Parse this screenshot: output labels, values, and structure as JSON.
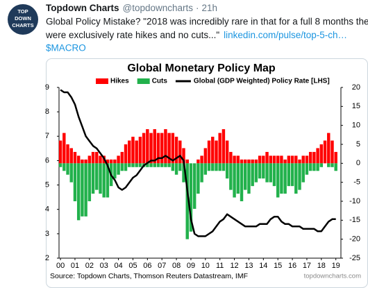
{
  "tweet": {
    "avatar_text": [
      "TOP",
      "DOWN",
      "CHARTS"
    ],
    "name": "Topdown Charts",
    "handle": "@topdowncharts",
    "time": "21h",
    "text_lines": [
      "Global Policy Mistake?  \"2018 was incredibly rare in that for a full 8 months there",
      "were exclusively rate hikes and no cuts...\""
    ],
    "link": "linkedin.com/pulse/top-5-ch…",
    "hashtag": "$MACRO"
  },
  "chart_data": {
    "type": "bar-line",
    "title": "Global Monetary Policy Map",
    "source": "Source: Topdown Charts, Thomson Reuters Datastream, IMF",
    "watermark": "topdowncharts.com",
    "x": [
      2000,
      2000.25,
      2000.5,
      2000.75,
      2001,
      2001.25,
      2001.5,
      2001.75,
      2002,
      2002.25,
      2002.5,
      2002.75,
      2003,
      2003.25,
      2003.5,
      2003.75,
      2004,
      2004.25,
      2004.5,
      2004.75,
      2005,
      2005.25,
      2005.5,
      2005.75,
      2006,
      2006.25,
      2006.5,
      2006.75,
      2007,
      2007.25,
      2007.5,
      2007.75,
      2008,
      2008.25,
      2008.5,
      2008.75,
      2009,
      2009.25,
      2009.5,
      2009.75,
      2010,
      2010.25,
      2010.5,
      2010.75,
      2011,
      2011.25,
      2011.5,
      2011.75,
      2012,
      2012.25,
      2012.5,
      2012.75,
      2013,
      2013.25,
      2013.5,
      2013.75,
      2014,
      2014.25,
      2014.5,
      2014.75,
      2015,
      2015.25,
      2015.5,
      2015.75,
      2016,
      2016.25,
      2016.5,
      2016.75,
      2017,
      2017.25,
      2017.5,
      2017.75,
      2018,
      2018.25,
      2018.5,
      2018.75,
      2019
    ],
    "series": [
      {
        "name": "Hikes",
        "color": "#ff0000",
        "axis": "y2",
        "kind": "bar",
        "values": [
          6,
          8,
          5,
          4,
          3,
          2,
          1,
          1,
          2,
          3,
          3,
          2,
          2,
          1,
          1,
          1,
          2,
          3,
          5,
          6,
          7,
          6,
          7,
          8,
          9,
          8,
          9,
          8,
          8,
          9,
          8,
          8,
          7,
          6,
          4,
          1,
          0,
          0,
          1,
          2,
          4,
          6,
          7,
          6,
          8,
          9,
          6,
          3,
          2,
          2,
          1,
          1,
          1,
          1,
          1,
          2,
          2,
          3,
          2,
          2,
          2,
          2,
          1,
          2,
          2,
          2,
          1,
          2,
          2,
          3,
          3,
          4,
          5,
          6,
          8,
          6,
          3
        ]
      },
      {
        "name": "Cuts",
        "color": "#22b14c",
        "axis": "y2",
        "kind": "bar",
        "values": [
          -1,
          -2,
          -3,
          -5,
          -10,
          -15,
          -14,
          -14,
          -10,
          -8,
          -7,
          -8,
          -9,
          -9,
          -6,
          -4,
          -3,
          -2,
          -2,
          -1,
          -1,
          -1,
          -1,
          -1,
          -1,
          -1,
          -1,
          -1,
          -1,
          -1,
          -1,
          -2,
          -3,
          -2,
          -5,
          -20,
          -18,
          -12,
          -8,
          -5,
          -3,
          -2,
          -2,
          -2,
          -2,
          -2,
          -4,
          -7,
          -9,
          -8,
          -10,
          -7,
          -8,
          -6,
          -5,
          -4,
          -4,
          -5,
          -5,
          -6,
          -9,
          -8,
          -8,
          -6,
          -6,
          -8,
          -7,
          -5,
          -3,
          -2,
          -2,
          -2,
          -1,
          0,
          -1,
          -1,
          -2
        ]
      },
      {
        "name": "Global (GDP Weighted) Policy Rate [LHS]",
        "color": "#000000",
        "axis": "y",
        "kind": "line",
        "values": [
          8.9,
          8.8,
          8.8,
          8.6,
          8.3,
          7.8,
          7.4,
          7.0,
          6.8,
          6.6,
          6.5,
          6.3,
          6.1,
          5.8,
          5.4,
          5.2,
          4.9,
          4.8,
          4.9,
          5.1,
          5.3,
          5.4,
          5.6,
          5.8,
          5.9,
          6.0,
          6.0,
          6.1,
          6.1,
          6.2,
          6.1,
          6.0,
          6.1,
          6.2,
          6.0,
          4.8,
          3.6,
          3.0,
          2.9,
          2.9,
          2.9,
          3.0,
          3.1,
          3.3,
          3.5,
          3.6,
          3.8,
          3.7,
          3.6,
          3.5,
          3.4,
          3.3,
          3.3,
          3.3,
          3.3,
          3.4,
          3.4,
          3.4,
          3.6,
          3.7,
          3.7,
          3.5,
          3.4,
          3.4,
          3.3,
          3.3,
          3.3,
          3.2,
          3.2,
          3.2,
          3.2,
          3.1,
          3.1,
          3.3,
          3.5,
          3.6,
          3.6
        ]
      }
    ],
    "xlim": [
      1999.9,
      2019.35
    ],
    "xticks": [
      {
        "value": 2000,
        "label": "00"
      },
      {
        "value": 2001,
        "label": "01"
      },
      {
        "value": 2002,
        "label": "02"
      },
      {
        "value": 2003,
        "label": "03"
      },
      {
        "value": 2004,
        "label": "04"
      },
      {
        "value": 2005,
        "label": "05"
      },
      {
        "value": 2006,
        "label": "06"
      },
      {
        "value": 2007,
        "label": "07"
      },
      {
        "value": 2008,
        "label": "08"
      },
      {
        "value": 2009,
        "label": "09"
      },
      {
        "value": 2010,
        "label": "10"
      },
      {
        "value": 2011,
        "label": "11"
      },
      {
        "value": 2012,
        "label": "12"
      },
      {
        "value": 2013,
        "label": "13"
      },
      {
        "value": 2014,
        "label": "14"
      },
      {
        "value": 2015,
        "label": "15"
      },
      {
        "value": 2016,
        "label": "16"
      },
      {
        "value": 2017,
        "label": "17"
      },
      {
        "value": 2018,
        "label": "18"
      },
      {
        "value": 2019,
        "label": "19"
      }
    ],
    "ylim": [
      2,
      9
    ],
    "yticks": [
      2,
      3,
      4,
      5,
      6,
      7,
      8,
      9
    ],
    "y2lim": [
      -25,
      20
    ],
    "y2ticks": [
      -25,
      -20,
      -15,
      -10,
      -5,
      0,
      5,
      10,
      15,
      20
    ]
  }
}
